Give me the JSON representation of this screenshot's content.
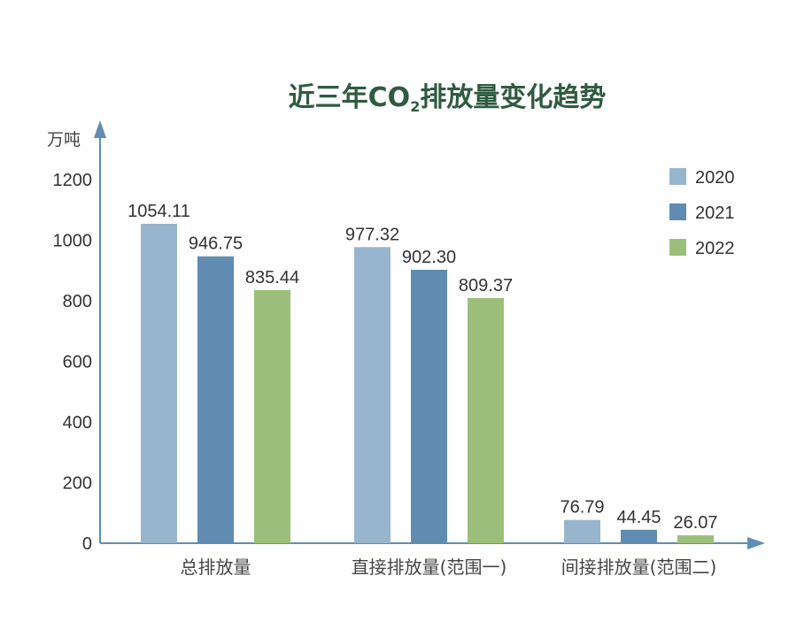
{
  "chart_data": {
    "type": "bar",
    "title": "近三年CO",
    "title_subscript": "2",
    "title_suffix": "排放量变化趋势",
    "ylabel": "万吨",
    "xlabel": "",
    "ylim": [
      0,
      1200
    ],
    "yticks": [
      0,
      200,
      400,
      600,
      800,
      1000,
      1200
    ],
    "grid": false,
    "legend_position": "top-right",
    "categories": [
      "总排放量",
      "直接排放量(范围一)",
      "间接排放量(范围二)"
    ],
    "series": [
      {
        "name": "2020",
        "color": "#98b5ce",
        "values": [
          1054.11,
          977.32,
          76.79
        ],
        "labels": [
          "1054.11",
          "977.32",
          "76.79"
        ]
      },
      {
        "name": "2021",
        "color": "#5f8cb0",
        "values": [
          946.75,
          902.3,
          44.45
        ],
        "labels": [
          "946.75",
          "902.30",
          "44.45"
        ]
      },
      {
        "name": "2022",
        "color": "#9bbf7a",
        "values": [
          835.44,
          809.37,
          26.07
        ],
        "labels": [
          "835.44",
          "809.37",
          "26.07"
        ]
      }
    ]
  }
}
